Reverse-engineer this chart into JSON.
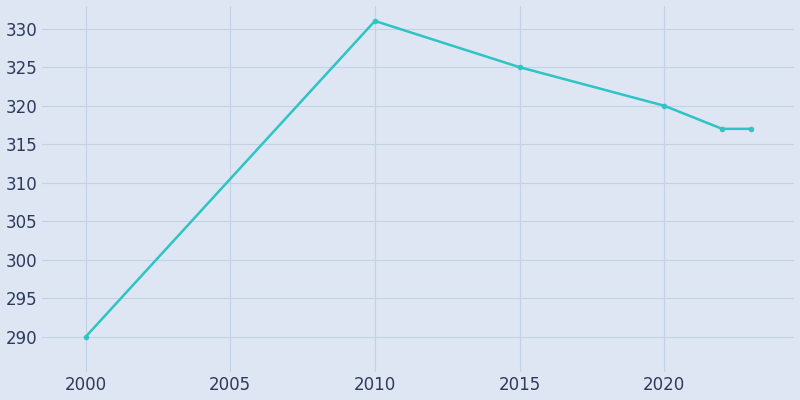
{
  "years": [
    2000,
    2010,
    2015,
    2020,
    2022,
    2023
  ],
  "population": [
    290,
    331,
    325,
    320,
    317,
    317
  ],
  "line_color": "#2EC4C4",
  "marker_color": "#2EC4C4",
  "bg_color": "#DDE6F2",
  "plot_bg_color": "#DDE6F2",
  "xlabel": "",
  "ylabel": "",
  "xlim": [
    1998.5,
    2024.5
  ],
  "ylim": [
    285.5,
    333
  ],
  "yticks": [
    290,
    295,
    300,
    305,
    310,
    315,
    320,
    325,
    330
  ],
  "xticks": [
    2000,
    2005,
    2010,
    2015,
    2020
  ],
  "grid_color": "#C5D2E5",
  "tick_color": "#2D3A5C",
  "tick_fontsize": 12
}
